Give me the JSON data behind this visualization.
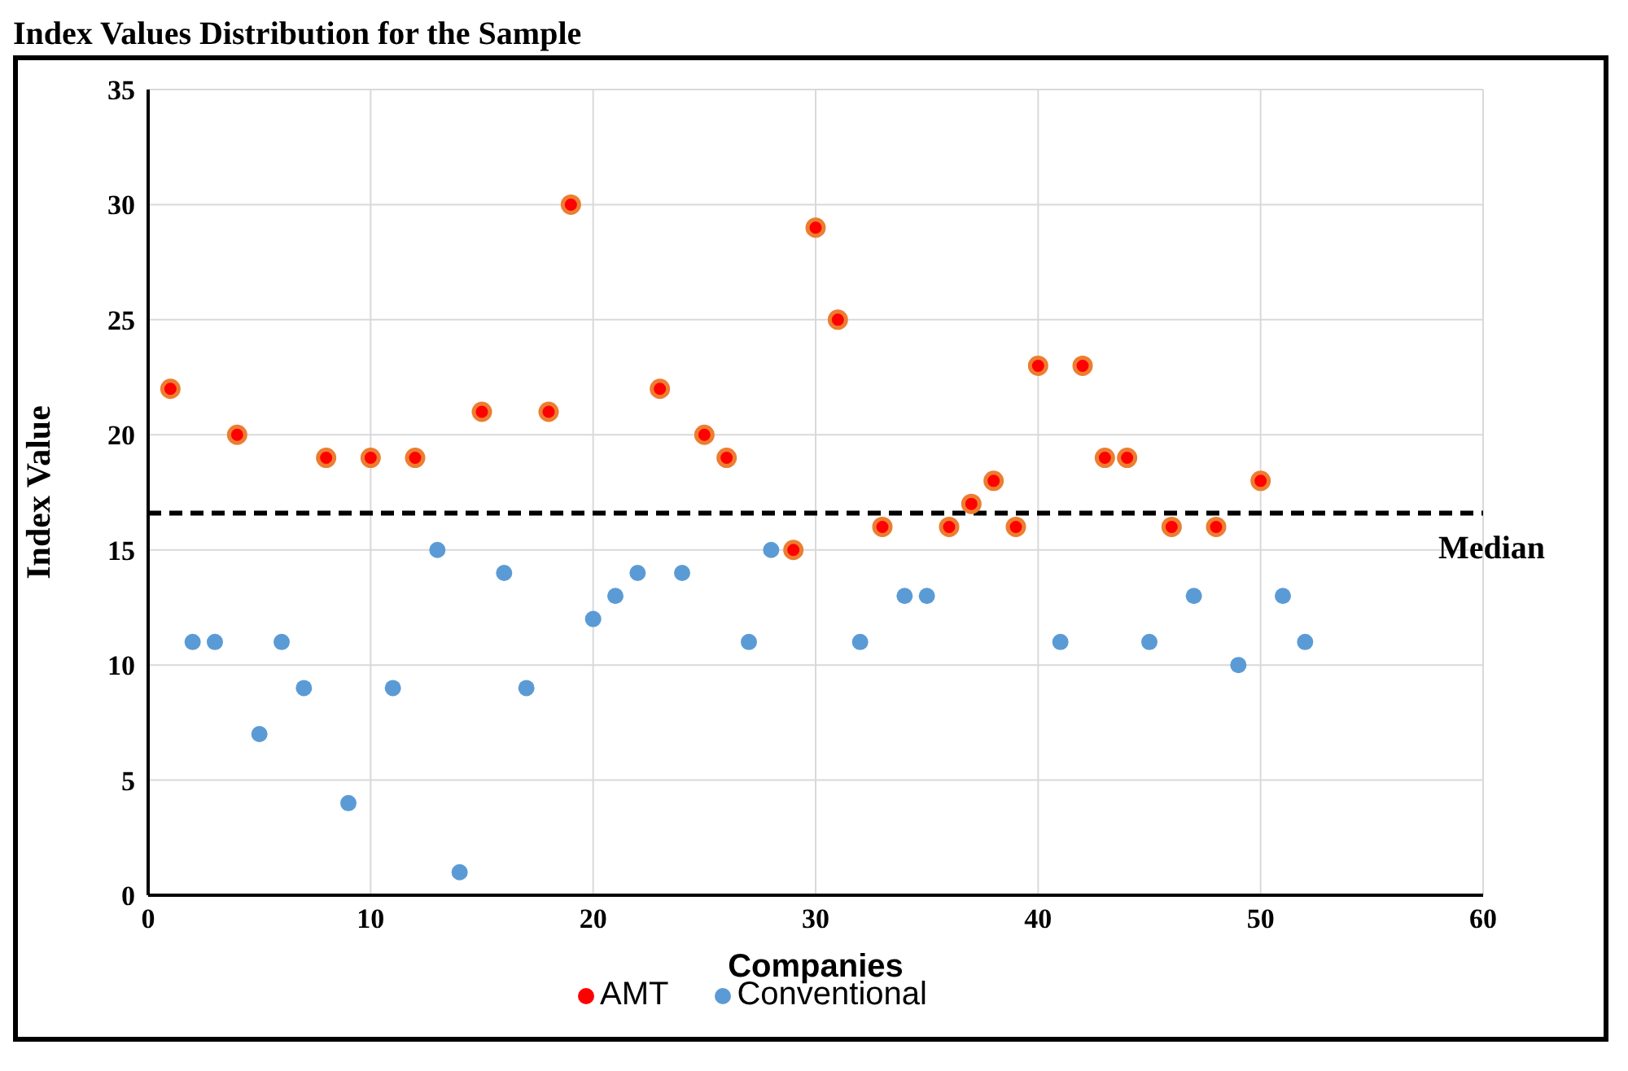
{
  "chart_data": {
    "type": "scatter",
    "title": "Index Values Distribution for the Sample",
    "xlabel": "Companies",
    "ylabel": "Index Value",
    "xlim": [
      0,
      60
    ],
    "xticks": [
      0,
      10,
      20,
      30,
      40,
      50,
      60
    ],
    "ylim": [
      0,
      35
    ],
    "yticks": [
      0,
      5,
      10,
      15,
      20,
      25,
      30,
      35
    ],
    "grid": true,
    "legend": "bottom",
    "marker": "circle",
    "ref_lines": [
      {
        "axis": "y",
        "value": 16.6,
        "label": "Median",
        "color": "#000000",
        "line_style": "dashed"
      }
    ],
    "series": [
      {
        "name": "Conventional",
        "color": "#5b9bd5",
        "x": [
          2,
          3,
          5,
          6,
          7,
          9,
          11,
          13,
          14,
          16,
          17,
          20,
          21,
          22,
          24,
          27,
          28,
          32,
          34,
          35,
          41,
          45,
          47,
          49,
          51,
          52
        ],
        "values": [
          11,
          11,
          7,
          11,
          9,
          4,
          9,
          15,
          1,
          14,
          9,
          12,
          13,
          14,
          14,
          11,
          15,
          11,
          13,
          13,
          11,
          11,
          13,
          10,
          13,
          11
        ]
      },
      {
        "name": "AMT",
        "color": "#ff0000",
        "x": [
          1,
          4,
          8,
          10,
          12,
          15,
          18,
          19,
          23,
          25,
          26,
          29,
          30,
          31,
          33,
          36,
          37,
          38,
          39,
          40,
          42,
          43,
          44,
          46,
          48,
          50
        ],
        "values": [
          22,
          20,
          19,
          19,
          19,
          21,
          21,
          30,
          22,
          20,
          19,
          15,
          29,
          25,
          16,
          16,
          17,
          18,
          16,
          23,
          23,
          19,
          19,
          16,
          16,
          18
        ]
      }
    ]
  }
}
